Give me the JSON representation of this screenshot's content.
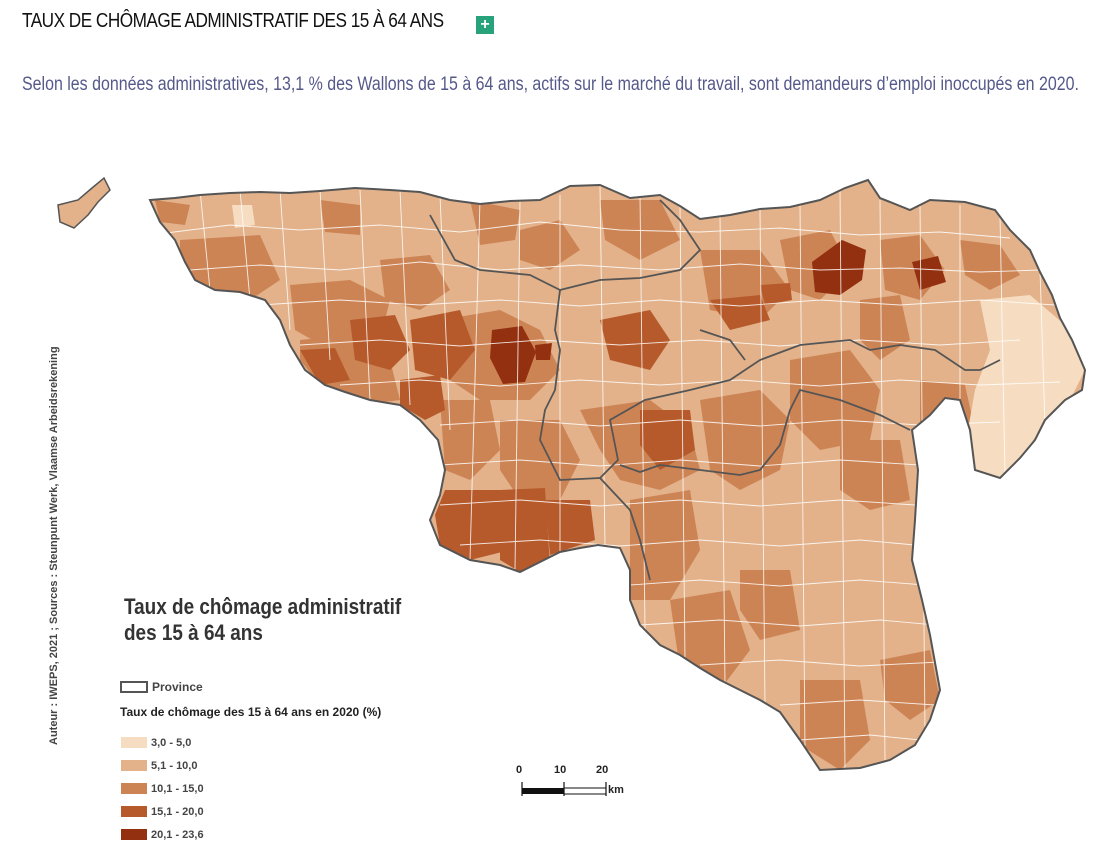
{
  "header": {
    "title": "TAUX DE CHÔMAGE ADMINISTRATIF DES 15 À 64 ANS",
    "expand_symbol": "+"
  },
  "intro_text": "Selon les données administratives, 13,1 % des Wallons de 15 à 64 ans, actifs sur le marché du travail, sont demandeurs d’emploi inoccupés en 2020.",
  "map": {
    "title_line1": "Taux de chômage administratif",
    "title_line2": "des 15 à 64 ans",
    "credit": "Auteur : IWEPS, 2021 ; Sources : Steunpunt Werk, Vlaamse Arbeidsrekening",
    "province_label": "Province",
    "legend_subtitle": "Taux de chômage des 15 à 64 ans en 2020 (%)",
    "legend": [
      {
        "label": "3,0 - 5,0",
        "color": "#f6dcc0"
      },
      {
        "label": "5,1 - 10,0",
        "color": "#e3b28a"
      },
      {
        "label": "10,1 - 15,0",
        "color": "#cd8455"
      },
      {
        "label": "15,1 - 20,0",
        "color": "#b65a2c"
      },
      {
        "label": "20,1 - 23,6",
        "color": "#933010"
      }
    ],
    "scale": {
      "ticks": [
        "0",
        "10",
        "20"
      ],
      "unit": "km"
    }
  }
}
